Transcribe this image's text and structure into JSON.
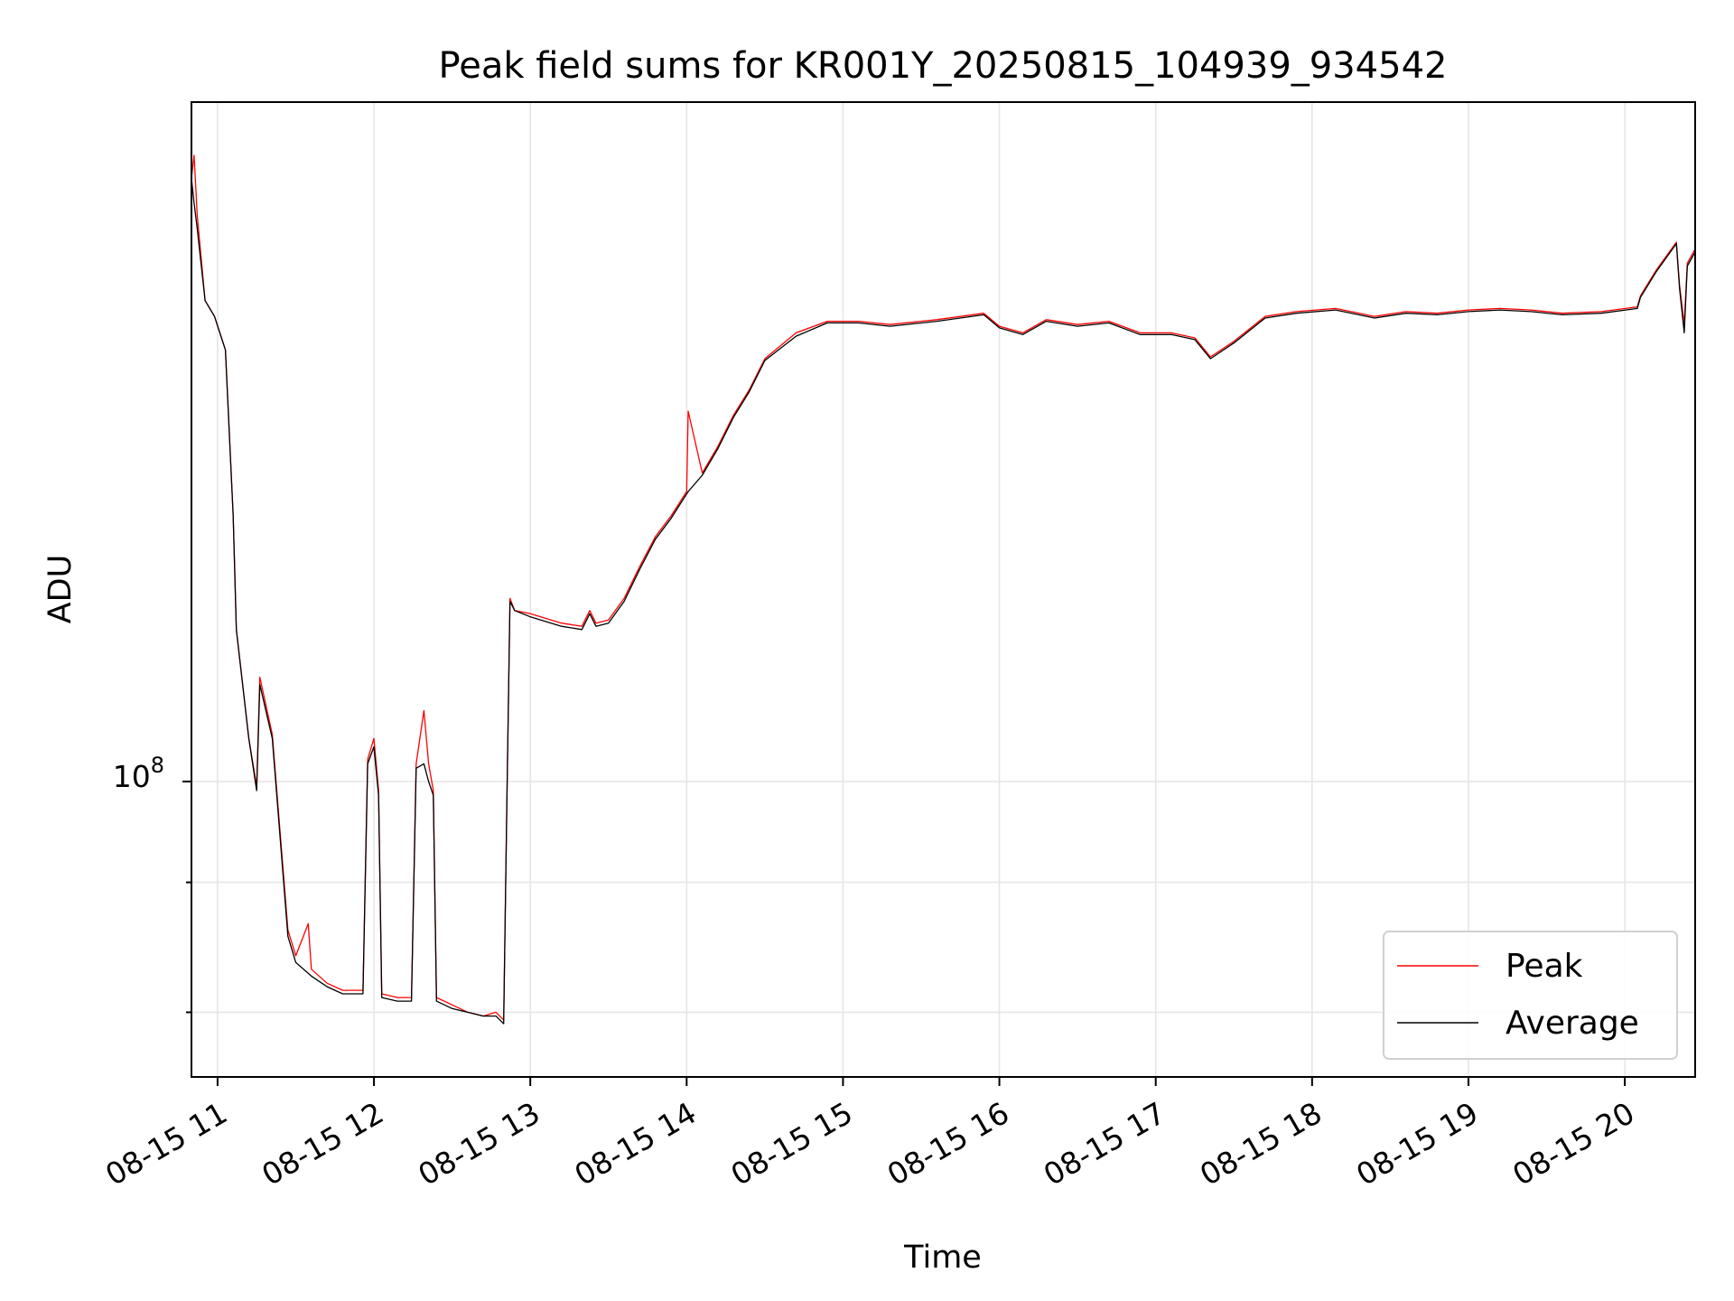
{
  "chart_data": {
    "type": "line",
    "title": "Peak field sums for KR001Y_20250815_104939_934542",
    "xlabel": "Time",
    "ylabel": "ADU",
    "x_ticks": [
      "08-15 11",
      "08-15 12",
      "08-15 13",
      "08-15 14",
      "08-15 15",
      "08-15 16",
      "08-15 17",
      "08-15 18",
      "08-15 19",
      "08-15 20"
    ],
    "y_tick_label": {
      "base": "10",
      "exponent": "8"
    },
    "y_scale": "log",
    "ylim": [
      52000000,
      450000000
    ],
    "xlim_hours": [
      10.833,
      20.45
    ],
    "grid": true,
    "legend_position": "lower-right",
    "series": [
      {
        "name": "Peak",
        "color": "#ff0000",
        "points": [
          [
            10.833,
            380000000
          ],
          [
            10.85,
            400000000
          ],
          [
            10.87,
            350000000
          ],
          [
            10.92,
            290000000
          ],
          [
            10.98,
            280000000
          ],
          [
            11.05,
            260000000
          ],
          [
            11.1,
            180000000
          ],
          [
            11.12,
            140000000
          ],
          [
            11.2,
            110000000
          ],
          [
            11.25,
            99000000
          ],
          [
            11.27,
            126000000
          ],
          [
            11.35,
            111000000
          ],
          [
            11.45,
            72000000
          ],
          [
            11.5,
            68000000
          ],
          [
            11.58,
            73000000
          ],
          [
            11.6,
            66000000
          ],
          [
            11.7,
            64000000
          ],
          [
            11.8,
            63000000
          ],
          [
            11.93,
            63000000
          ],
          [
            11.96,
            105000000
          ],
          [
            12.0,
            110000000
          ],
          [
            12.03,
            98000000
          ],
          [
            12.05,
            62500000
          ],
          [
            12.15,
            62000000
          ],
          [
            12.24,
            62000000
          ],
          [
            12.27,
            104000000
          ],
          [
            12.32,
            117000000
          ],
          [
            12.35,
            104000000
          ],
          [
            12.38,
            98000000
          ],
          [
            12.4,
            62000000
          ],
          [
            12.5,
            61000000
          ],
          [
            12.6,
            60000000
          ],
          [
            12.7,
            59500000
          ],
          [
            12.78,
            60000000
          ],
          [
            12.83,
            59000000
          ],
          [
            12.85,
            95000000
          ],
          [
            12.87,
            150000000
          ],
          [
            12.9,
            146000000
          ],
          [
            13.0,
            145000000
          ],
          [
            13.2,
            142000000
          ],
          [
            13.33,
            141000000
          ],
          [
            13.38,
            146000000
          ],
          [
            13.42,
            142000000
          ],
          [
            13.5,
            143000000
          ],
          [
            13.6,
            150000000
          ],
          [
            13.7,
            161000000
          ],
          [
            13.8,
            172000000
          ],
          [
            13.9,
            180000000
          ],
          [
            14.0,
            190000000
          ],
          [
            14.01,
            227000000
          ],
          [
            14.1,
            198000000
          ],
          [
            14.2,
            210000000
          ],
          [
            14.3,
            225000000
          ],
          [
            14.4,
            238000000
          ],
          [
            14.5,
            255000000
          ],
          [
            14.7,
            270000000
          ],
          [
            14.9,
            277000000
          ],
          [
            15.1,
            277000000
          ],
          [
            15.3,
            275000000
          ],
          [
            15.6,
            278000000
          ],
          [
            15.9,
            282000000
          ],
          [
            16.0,
            274000000
          ],
          [
            16.15,
            270000000
          ],
          [
            16.3,
            278000000
          ],
          [
            16.5,
            275000000
          ],
          [
            16.7,
            277000000
          ],
          [
            16.9,
            270000000
          ],
          [
            17.1,
            270000000
          ],
          [
            17.25,
            267000000
          ],
          [
            17.35,
            256000000
          ],
          [
            17.5,
            265000000
          ],
          [
            17.7,
            280000000
          ],
          [
            17.9,
            283000000
          ],
          [
            18.15,
            285000000
          ],
          [
            18.4,
            280000000
          ],
          [
            18.6,
            283000000
          ],
          [
            18.8,
            282000000
          ],
          [
            19.0,
            284000000
          ],
          [
            19.2,
            285000000
          ],
          [
            19.4,
            284000000
          ],
          [
            19.6,
            282000000
          ],
          [
            19.85,
            283000000
          ],
          [
            20.08,
            286000000
          ],
          [
            20.1,
            293000000
          ],
          [
            20.2,
            310000000
          ],
          [
            20.33,
            330000000
          ],
          [
            20.35,
            300000000
          ],
          [
            20.38,
            275000000
          ],
          [
            20.4,
            315000000
          ],
          [
            20.45,
            325000000
          ]
        ]
      },
      {
        "name": "Average",
        "color": "#000000",
        "points": [
          [
            10.833,
            380000000
          ],
          [
            10.85,
            360000000
          ],
          [
            10.87,
            340000000
          ],
          [
            10.92,
            290000000
          ],
          [
            10.98,
            280000000
          ],
          [
            11.05,
            260000000
          ],
          [
            11.1,
            180000000
          ],
          [
            11.12,
            140000000
          ],
          [
            11.2,
            110000000
          ],
          [
            11.25,
            98000000
          ],
          [
            11.27,
            124000000
          ],
          [
            11.35,
            110000000
          ],
          [
            11.45,
            71000000
          ],
          [
            11.5,
            67000000
          ],
          [
            11.6,
            65000000
          ],
          [
            11.7,
            63500000
          ],
          [
            11.8,
            62500000
          ],
          [
            11.93,
            62500000
          ],
          [
            11.96,
            104000000
          ],
          [
            12.0,
            108000000
          ],
          [
            12.03,
            97000000
          ],
          [
            12.05,
            62000000
          ],
          [
            12.15,
            61500000
          ],
          [
            12.24,
            61500000
          ],
          [
            12.27,
            103000000
          ],
          [
            12.32,
            104000000
          ],
          [
            12.35,
            100000000
          ],
          [
            12.38,
            97000000
          ],
          [
            12.4,
            61500000
          ],
          [
            12.5,
            60500000
          ],
          [
            12.6,
            60000000
          ],
          [
            12.7,
            59500000
          ],
          [
            12.78,
            59500000
          ],
          [
            12.83,
            58500000
          ],
          [
            12.85,
            95000000
          ],
          [
            12.87,
            149000000
          ],
          [
            12.9,
            146000000
          ],
          [
            13.0,
            144000000
          ],
          [
            13.2,
            141000000
          ],
          [
            13.33,
            140000000
          ],
          [
            13.38,
            145000000
          ],
          [
            13.42,
            141000000
          ],
          [
            13.5,
            142000000
          ],
          [
            13.6,
            149000000
          ],
          [
            13.7,
            160000000
          ],
          [
            13.8,
            171000000
          ],
          [
            13.9,
            179000000
          ],
          [
            14.0,
            189000000
          ],
          [
            14.01,
            190000000
          ],
          [
            14.1,
            197000000
          ],
          [
            14.2,
            209000000
          ],
          [
            14.3,
            224000000
          ],
          [
            14.4,
            237000000
          ],
          [
            14.5,
            254000000
          ],
          [
            14.7,
            268000000
          ],
          [
            14.9,
            276000000
          ],
          [
            15.1,
            276000000
          ],
          [
            15.3,
            274000000
          ],
          [
            15.6,
            277000000
          ],
          [
            15.9,
            281000000
          ],
          [
            16.0,
            273000000
          ],
          [
            16.15,
            269000000
          ],
          [
            16.3,
            277000000
          ],
          [
            16.5,
            274000000
          ],
          [
            16.7,
            276000000
          ],
          [
            16.9,
            269000000
          ],
          [
            17.1,
            269000000
          ],
          [
            17.25,
            266000000
          ],
          [
            17.35,
            255000000
          ],
          [
            17.5,
            264000000
          ],
          [
            17.7,
            279000000
          ],
          [
            17.9,
            282000000
          ],
          [
            18.15,
            284000000
          ],
          [
            18.4,
            279000000
          ],
          [
            18.6,
            282000000
          ],
          [
            18.8,
            281000000
          ],
          [
            19.0,
            283000000
          ],
          [
            19.2,
            284000000
          ],
          [
            19.4,
            283000000
          ],
          [
            19.6,
            281000000
          ],
          [
            19.85,
            282000000
          ],
          [
            20.08,
            285000000
          ],
          [
            20.1,
            292000000
          ],
          [
            20.2,
            309000000
          ],
          [
            20.33,
            329000000
          ],
          [
            20.35,
            298000000
          ],
          [
            20.38,
            270000000
          ],
          [
            20.4,
            313000000
          ],
          [
            20.45,
            323000000
          ]
        ]
      }
    ]
  }
}
